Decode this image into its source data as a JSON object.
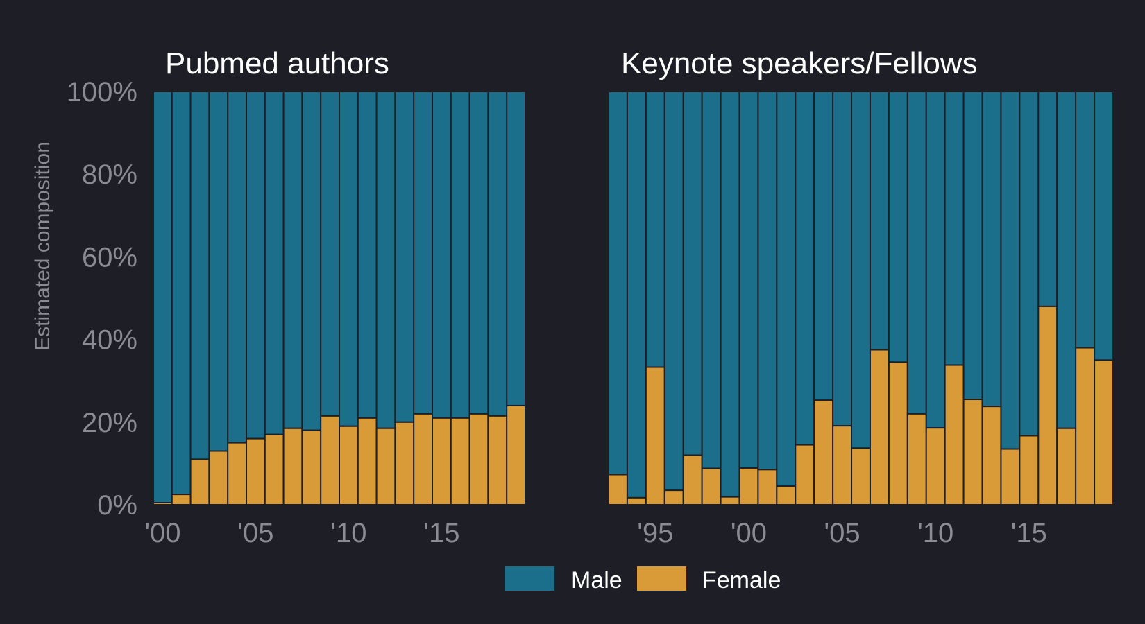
{
  "colors": {
    "background": "#1e1f26",
    "male": "#1b6f8a",
    "female": "#d89b37",
    "separator": "#1e1f26"
  },
  "legend": {
    "items": [
      {
        "label": "Male",
        "key": "male"
      },
      {
        "label": "Female",
        "key": "female"
      }
    ]
  },
  "chart_data": [
    {
      "type": "bar",
      "stacked": true,
      "title": "Pubmed authors",
      "ylabel": "Estimated composition",
      "ylim": [
        0,
        100
      ],
      "yticks": [
        "0%",
        "20%",
        "40%",
        "60%",
        "80%",
        "100%"
      ],
      "x": [
        2000,
        2001,
        2002,
        2003,
        2004,
        2005,
        2006,
        2007,
        2008,
        2009,
        2010,
        2011,
        2012,
        2013,
        2014,
        2015,
        2016,
        2017,
        2018,
        2019
      ],
      "xticks": [
        {
          "year": 2000,
          "label": "'00"
        },
        {
          "year": 2005,
          "label": "'05"
        },
        {
          "year": 2010,
          "label": "'10"
        },
        {
          "year": 2015,
          "label": "'15"
        }
      ],
      "series": [
        {
          "name": "Female",
          "values": [
            0.5,
            2.5,
            11,
            13,
            15,
            16,
            17,
            18.5,
            18,
            21.5,
            19,
            21,
            18.5,
            20,
            22,
            21,
            21,
            22,
            21.5,
            24
          ]
        },
        {
          "name": "Male",
          "values": [
            99.5,
            97.5,
            89,
            87,
            85,
            84,
            83,
            81.5,
            82,
            78.5,
            81,
            79,
            81.5,
            80,
            78,
            79,
            79,
            78,
            78.5,
            76
          ]
        }
      ]
    },
    {
      "type": "bar",
      "stacked": true,
      "title": "Keynote speakers/Fellows",
      "ylim": [
        0,
        100
      ],
      "x": [
        1993,
        1994,
        1995,
        1996,
        1997,
        1998,
        1999,
        2000,
        2001,
        2002,
        2003,
        2004,
        2005,
        2006,
        2007,
        2008,
        2009,
        2010,
        2011,
        2012,
        2013,
        2014,
        2015,
        2016,
        2017,
        2018,
        2019
      ],
      "xticks": [
        {
          "year": 1995,
          "label": "'95"
        },
        {
          "year": 2000,
          "label": "'00"
        },
        {
          "year": 2005,
          "label": "'05"
        },
        {
          "year": 2010,
          "label": "'10"
        },
        {
          "year": 2015,
          "label": "'15"
        }
      ],
      "series": [
        {
          "name": "Female",
          "values": [
            7.3,
            1.7,
            33.3,
            3.5,
            12,
            8.8,
            1.9,
            8.9,
            8.5,
            4.5,
            14.5,
            25.3,
            19.1,
            13.7,
            37.5,
            34.5,
            22,
            18.6,
            33.8,
            25.5,
            23.8,
            13.5,
            16.7,
            48,
            18.5,
            38,
            35
          ]
        },
        {
          "name": "Male",
          "values": [
            92.7,
            98.3,
            66.7,
            96.5,
            88,
            91.2,
            98.1,
            91.1,
            91.5,
            95.5,
            85.5,
            74.7,
            80.9,
            86.3,
            62.5,
            65.5,
            78,
            81.4,
            66.2,
            74.5,
            76.2,
            86.5,
            83.3,
            52,
            81.5,
            62,
            65
          ]
        }
      ]
    }
  ]
}
